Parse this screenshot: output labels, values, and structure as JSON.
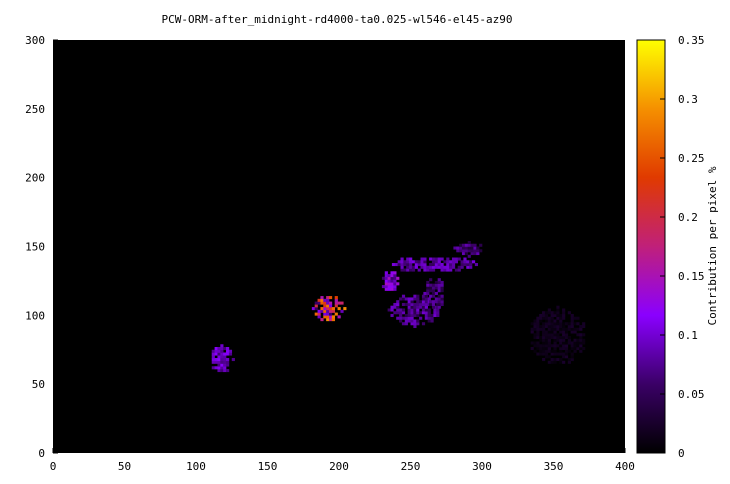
{
  "chart_data": {
    "type": "heatmap",
    "title": "PCW-ORM-after_midnight-rd4000-ta0.025-wl546-el45-az90",
    "xlabel": "",
    "ylabel": "",
    "xlim": [
      0,
      400
    ],
    "ylim": [
      0,
      300
    ],
    "x_ticks": [
      "0",
      "50",
      "100",
      "150",
      "200",
      "250",
      "300",
      "350",
      "400"
    ],
    "y_ticks": [
      "0",
      "50",
      "100",
      "150",
      "200",
      "250",
      "300"
    ],
    "colorbar": {
      "label": "Contribution per pixel %",
      "range": [
        0,
        0.35
      ],
      "ticks": [
        "0",
        "0.05",
        "0.1",
        "0.15",
        "0.2",
        "0.25",
        "0.3",
        "0.35"
      ],
      "palette": [
        "#000000",
        "#3a0066",
        "#8a00ff",
        "#c0207a",
        "#e03a00",
        "#f59000",
        "#ffff00"
      ]
    },
    "background_value": 0,
    "regions": [
      {
        "name": "small-island",
        "cx": 117,
        "cy": 67,
        "rx": 8,
        "ry": 10,
        "mean": 0.09,
        "spread": 0.03
      },
      {
        "name": "round-island",
        "cx": 192,
        "cy": 104,
        "rx": 11,
        "ry": 10,
        "mean": 0.17,
        "spread": 0.12
      },
      {
        "name": "large-island-head",
        "cx": 235,
        "cy": 124,
        "rx": 7,
        "ry": 8,
        "mean": 0.1,
        "spread": 0.05
      },
      {
        "name": "large-island-ridge",
        "cx": 265,
        "cy": 136,
        "rx": 30,
        "ry": 6,
        "mean": 0.08,
        "spread": 0.03
      },
      {
        "name": "large-island-tip",
        "cx": 290,
        "cy": 147,
        "rx": 12,
        "ry": 5,
        "mean": 0.06,
        "spread": 0.03
      },
      {
        "name": "large-island-body",
        "cx": 252,
        "cy": 103,
        "rx": 18,
        "ry": 12,
        "mean": 0.07,
        "spread": 0.03
      },
      {
        "name": "large-island-east",
        "cx": 266,
        "cy": 115,
        "rx": 7,
        "ry": 12,
        "mean": 0.06,
        "spread": 0.03
      },
      {
        "name": "faint-island",
        "cx": 352,
        "cy": 84,
        "rx": 20,
        "ry": 21,
        "mean": 0.015,
        "spread": 0.01
      }
    ]
  }
}
